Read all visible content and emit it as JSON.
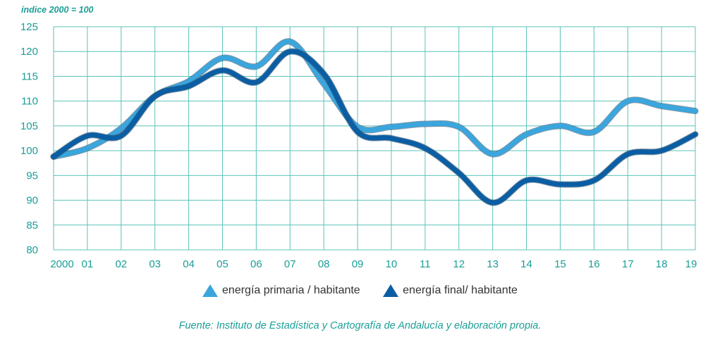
{
  "chart_data": {
    "type": "line",
    "unit_label": "índice 2000 = 100",
    "categories": [
      "2000",
      "01",
      "02",
      "03",
      "04",
      "05",
      "06",
      "07",
      "08",
      "09",
      "10",
      "11",
      "12",
      "13",
      "14",
      "15",
      "16",
      "17",
      "18",
      "19"
    ],
    "ylim": [
      80,
      125
    ],
    "yticks": [
      80,
      85,
      90,
      95,
      100,
      105,
      110,
      115,
      120,
      125
    ],
    "grid": true,
    "legend_position": "bottom-center",
    "series": [
      {
        "name": "energía primaria / habitante",
        "color": "#3aa6dd",
        "values": [
          98.8,
          100.5,
          104.5,
          111.0,
          114.0,
          118.7,
          117.0,
          122.0,
          113.5,
          104.8,
          104.8,
          105.4,
          104.8,
          99.3,
          103.3,
          105.0,
          103.8,
          110.0,
          109.0,
          108.0
        ]
      },
      {
        "name": "energía final/ habitante",
        "color": "#0b5ea3",
        "values": [
          98.8,
          103.0,
          103.0,
          111.0,
          113.0,
          116.2,
          113.8,
          120.0,
          115.5,
          103.8,
          102.5,
          100.5,
          95.5,
          89.5,
          94.0,
          93.2,
          94.0,
          99.3,
          100.0,
          103.3
        ]
      }
    ]
  },
  "source": "Fuente: Instituto de Estadística y Cartografía de Andalucía y elaboración propia."
}
